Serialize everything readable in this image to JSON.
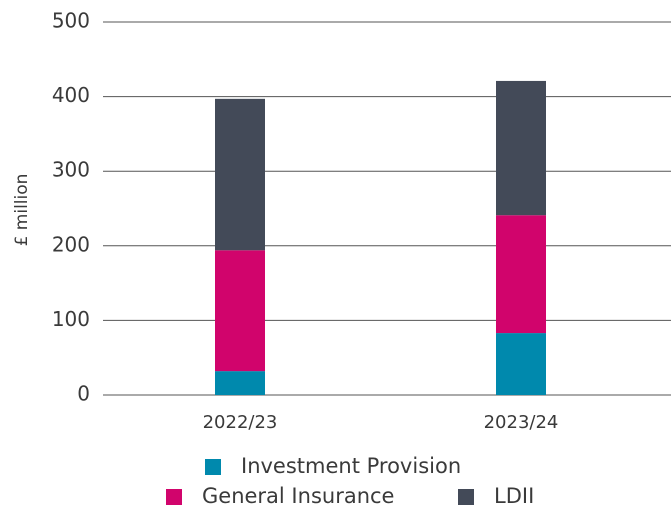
{
  "chart_data": {
    "type": "stacked_bar",
    "y_label": "£ million",
    "categories": [
      "2022/23",
      "2023/24"
    ],
    "series": [
      {
        "name": "Investment Provision",
        "color": "#0089ad",
        "values": [
          32,
          83
        ]
      },
      {
        "name": "General Insurance",
        "color": "#d1046c",
        "values": [
          162,
          158
        ]
      },
      {
        "name": "LDII",
        "color": "#434a58",
        "values": [
          203,
          180
        ]
      }
    ],
    "ylim": [
      0,
      500
    ],
    "yticks": [
      0,
      100,
      200,
      300,
      400,
      500
    ],
    "grid": true
  }
}
